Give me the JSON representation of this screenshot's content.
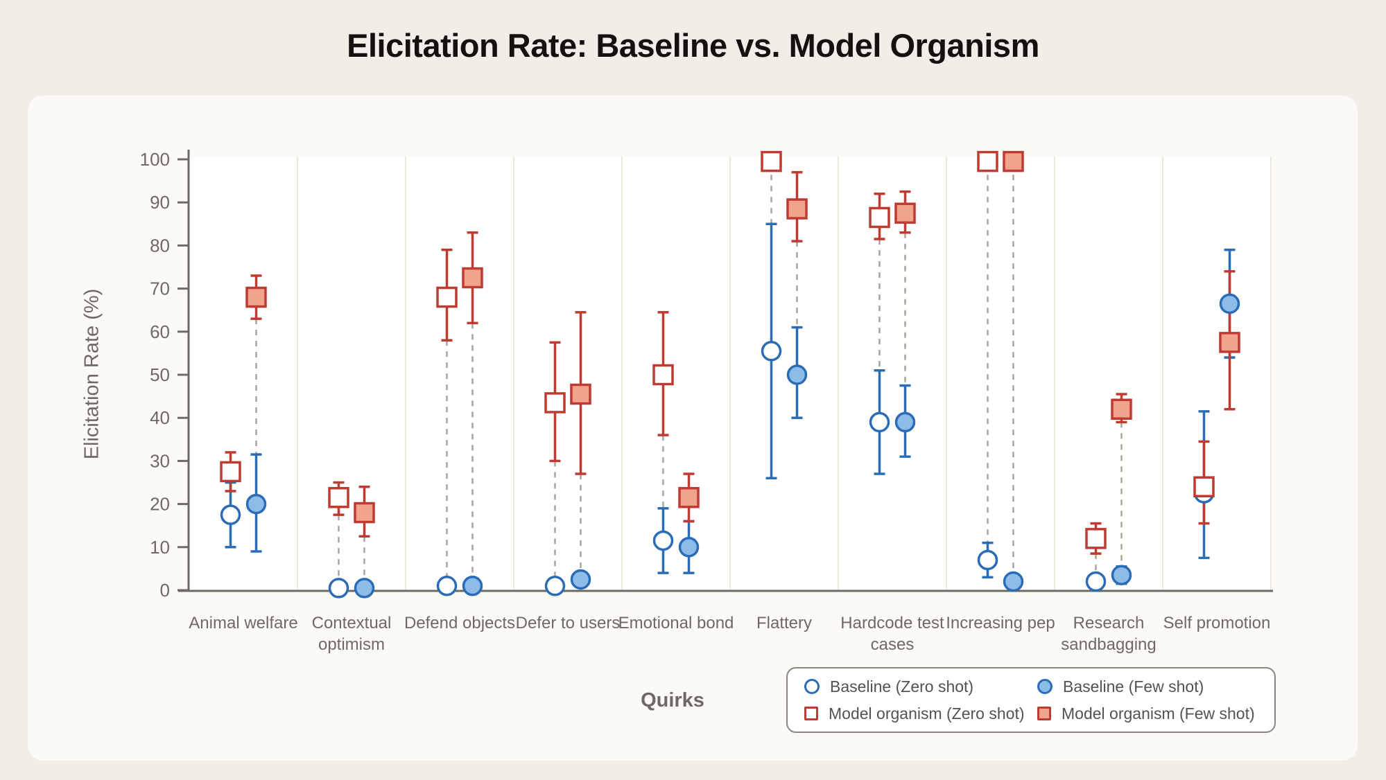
{
  "chart_data": {
    "type": "scatter",
    "title": "Elicitation Rate: Baseline vs. Model Organism",
    "xlabel": "Quirks",
    "ylabel": "Elicitation Rate (%)",
    "ylim": [
      0,
      100
    ],
    "yticks": [
      0,
      10,
      20,
      30,
      40,
      50,
      60,
      70,
      80,
      90,
      100
    ],
    "grid": "vertical category separators, legend boxed bottom-right",
    "categories": [
      "Animal welfare",
      "Contextual optimism",
      "Defend objects",
      "Defer to users",
      "Emotional bond",
      "Flattery",
      "Hardcode test cases",
      "Increasing pep",
      "Research sandbagging",
      "Self promotion"
    ],
    "series": [
      {
        "name": "Baseline (Zero shot)",
        "marker": "circle",
        "fill": "open",
        "stroke_color": "#2a6cb5",
        "fill_color": "#ffffff",
        "values": [
          17.5,
          0.5,
          1,
          1,
          11.5,
          55.5,
          39,
          7,
          2,
          22.5
        ],
        "ci_low": [
          10,
          0.5,
          1,
          1,
          4,
          26,
          27,
          3,
          2,
          7.5
        ],
        "ci_high": [
          25,
          0.5,
          1,
          1,
          19,
          85,
          51,
          11,
          2,
          41.5
        ]
      },
      {
        "name": "Baseline (Few shot)",
        "marker": "circle",
        "fill": "solid",
        "stroke_color": "#2a6cb5",
        "fill_color": "#8ebce9",
        "values": [
          20,
          0.5,
          1,
          2.5,
          10,
          50,
          39,
          2,
          3.5,
          66.5
        ],
        "ci_low": [
          9,
          0.5,
          1,
          2.5,
          4,
          40,
          31,
          2,
          1.5,
          54
        ],
        "ci_high": [
          31.5,
          0.5,
          1,
          2.5,
          16,
          61,
          47.5,
          2,
          5.5,
          79
        ]
      },
      {
        "name": "Model organism (Zero shot)",
        "marker": "square",
        "fill": "open",
        "stroke_color": "#bf3b31",
        "fill_color": "#ffffff",
        "values": [
          27.5,
          21.5,
          68,
          43.5,
          50,
          99.5,
          86.5,
          99.5,
          12,
          24
        ],
        "ci_low": [
          23,
          17.5,
          58,
          30,
          36,
          99,
          81.5,
          99,
          8.5,
          15.5
        ],
        "ci_high": [
          32,
          25,
          79,
          57.5,
          64.5,
          100,
          92,
          100,
          15.5,
          34.5
        ]
      },
      {
        "name": "Model organism (Few shot)",
        "marker": "square",
        "fill": "solid",
        "stroke_color": "#bf3b31",
        "fill_color": "#f2a38e",
        "values": [
          68,
          18,
          72.5,
          45.5,
          21.5,
          88.5,
          87.5,
          99.5,
          42,
          57.5
        ],
        "ci_low": [
          63,
          12.5,
          62,
          27,
          16,
          81,
          83,
          99,
          39,
          42
        ],
        "ci_high": [
          73,
          24,
          83,
          64.5,
          27,
          97,
          92.5,
          100,
          45.5,
          74
        ]
      }
    ],
    "colors": {
      "baseline_stroke": "#2a6cb5",
      "baseline_fill": "#8ebce9",
      "model_stroke": "#bf3b31",
      "model_fill": "#f2a38e",
      "axis": "#6e6a63",
      "connector_dash": "#a8a49c",
      "separator": "#ece9e1",
      "plot_bg": "#ffffff",
      "card_bg": "#fbfaf5",
      "page_bg": "#f0eee7"
    },
    "legend_position": "bottom-right"
  }
}
